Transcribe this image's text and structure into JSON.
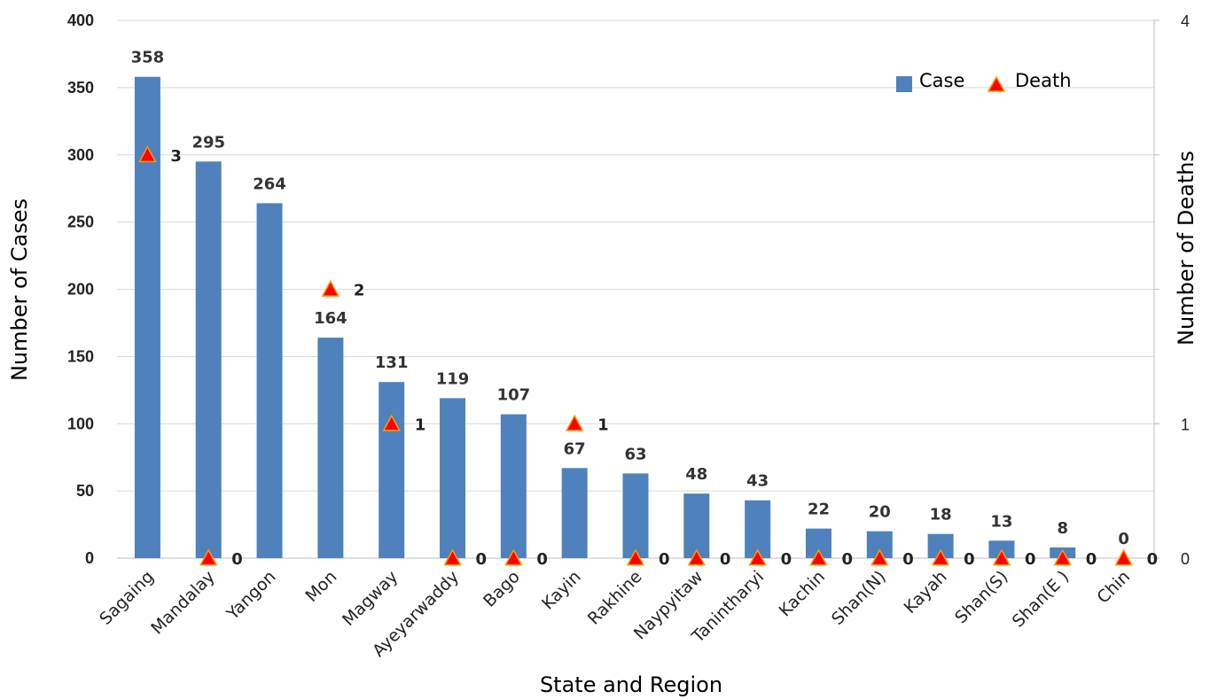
{
  "chart_data": {
    "type": "bar",
    "categories": [
      "Sagaing",
      "Mandalay",
      "Yangon",
      "Mon",
      "Magway",
      "Ayeyarwaddy",
      "Bago",
      "Kayin",
      "Rakhine",
      "Naypyitaw",
      "Tanintharyi",
      "Kachin",
      "Shan(N)",
      "Kayah",
      "Shan(S)",
      "Shan(E )",
      "Chin"
    ],
    "series": [
      {
        "name": "Case",
        "type": "bar",
        "axis": "left",
        "color": "#4f81bd",
        "values": [
          358,
          295,
          264,
          164,
          131,
          119,
          107,
          67,
          63,
          48,
          43,
          22,
          20,
          18,
          13,
          8,
          0
        ]
      },
      {
        "name": "Death",
        "type": "scatter",
        "axis": "right",
        "color": "#ff0000",
        "marker": "triangle",
        "values": [
          3,
          0,
          null,
          2,
          1,
          0,
          0,
          1,
          0,
          0,
          0,
          0,
          0,
          0,
          0,
          0,
          0
        ]
      }
    ],
    "xlabel": "State and Region",
    "ylabel": "Number of Cases",
    "y2label": "Number of Deaths",
    "ylim": [
      0,
      400
    ],
    "yticks": [
      "0",
      "50",
      "100",
      "150",
      "200",
      "250",
      "300",
      "350",
      "400"
    ],
    "y2lim": [
      0,
      4
    ],
    "y2ticks": [
      "0",
      "1",
      "4"
    ],
    "grid": true,
    "legend_position": "top-right"
  }
}
